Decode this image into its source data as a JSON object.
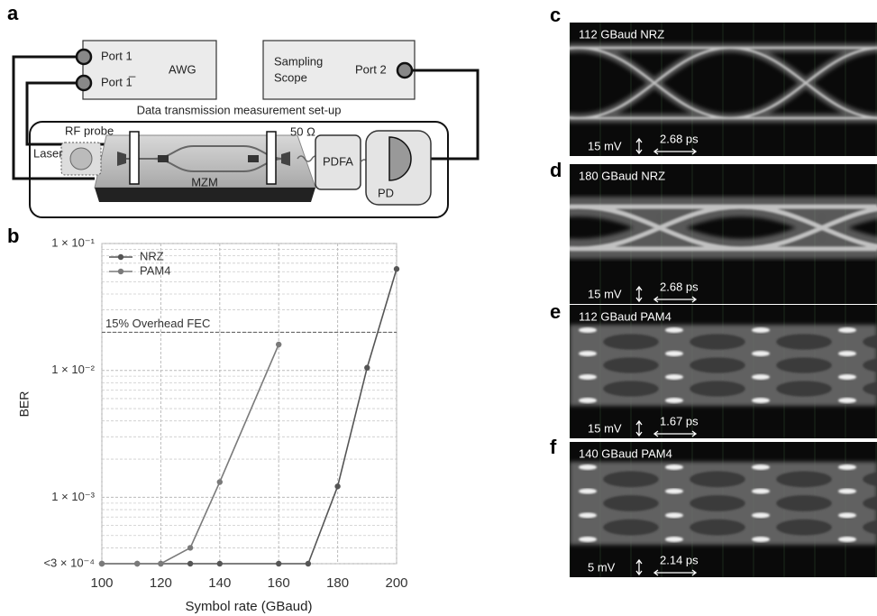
{
  "panel_labels": [
    "a",
    "b",
    "c",
    "d",
    "e",
    "f"
  ],
  "setup": {
    "port1": "Port 1",
    "port1bar": "Port 1̅",
    "awg": "AWG",
    "sampling": "Sampling",
    "scope": "Scope",
    "port2": "Port 2",
    "caption": "Data transmission measurement set-up",
    "rf_probe": "RF probe",
    "termination": "50 Ω",
    "laser": "Laser",
    "pdfa": "PDFA",
    "mzm": "MZM",
    "pd": "PD"
  },
  "chart_data": {
    "type": "line",
    "x_label": "Symbol rate (GBaud)",
    "y_label": "BER",
    "log_y": true,
    "grid": true,
    "legend": "upper left",
    "xlim": [
      100,
      200
    ],
    "xticks": [
      100,
      120,
      140,
      160,
      180,
      200
    ],
    "ylim": [
      0.0003,
      0.1
    ],
    "yticks": [
      {
        "value": 0.1,
        "label": "1 × 10⁻¹"
      },
      {
        "value": 0.01,
        "label": "1 × 10⁻²"
      },
      {
        "value": 0.001,
        "label": "1 × 10⁻³"
      },
      {
        "value": 0.0003,
        "label": "<3 × 10⁻⁴"
      }
    ],
    "yminorticks": [
      0.0004,
      0.0005,
      0.0006,
      0.0007,
      0.0008,
      0.0009,
      0.002,
      0.003,
      0.004,
      0.005,
      0.006,
      0.007,
      0.008,
      0.009,
      0.02,
      0.03,
      0.04,
      0.05,
      0.06,
      0.07,
      0.08,
      0.09
    ],
    "threshold": {
      "value": 0.02,
      "label": "15% Overhead FEC"
    },
    "series": [
      {
        "name": "NRZ",
        "color": "#555555",
        "x": [
          100,
          112,
          120,
          130,
          140,
          160,
          170,
          180,
          190,
          200
        ],
        "values": [
          0.0003,
          0.0003,
          0.0003,
          0.0003,
          0.0003,
          0.0003,
          0.0003,
          0.00122,
          0.0105,
          0.063
        ]
      },
      {
        "name": "PAM4",
        "color": "#7a7a7a",
        "x": [
          100,
          112,
          120,
          130,
          140,
          160
        ],
        "values": [
          0.0003,
          0.0003,
          0.0003,
          0.0004,
          0.00132,
          0.016
        ]
      }
    ]
  },
  "eyes": [
    {
      "title": "112 GBaud NRZ",
      "amplitude": "15 mV",
      "time": "2.68 ps"
    },
    {
      "title": "180 GBaud NRZ",
      "amplitude": "15 mV",
      "time": "2.68 ps"
    },
    {
      "title": "112 GBaud PAM4",
      "amplitude": "15 mV",
      "time": "1.67 ps"
    },
    {
      "title": "140 GBaud PAM4",
      "amplitude": "5 mV",
      "time": "2.14 ps"
    }
  ]
}
